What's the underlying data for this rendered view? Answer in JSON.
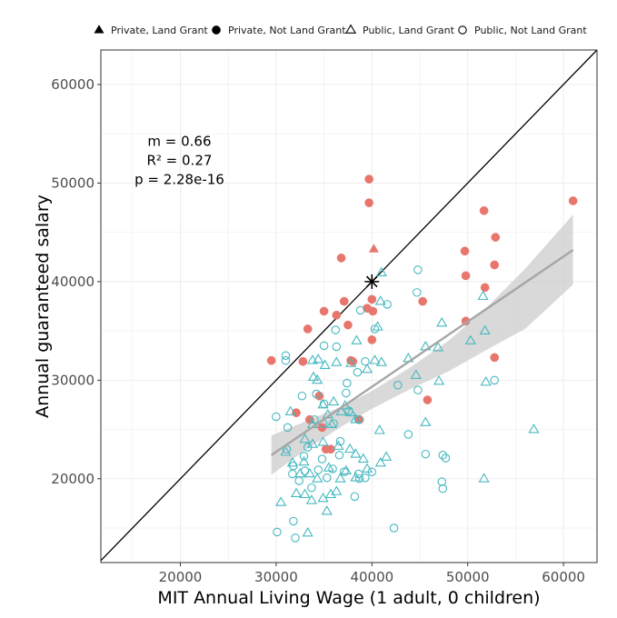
{
  "chart_data": {
    "type": "scatter",
    "xlabel": "MIT Annual Living Wage (1 adult, 0 children)",
    "ylabel": "Annual guaranteed salary",
    "xlim": [
      11700,
      63500
    ],
    "ylim": [
      11500,
      63500
    ],
    "x_ticks": [
      20000,
      30000,
      40000,
      50000,
      60000
    ],
    "y_ticks": [
      20000,
      30000,
      40000,
      50000,
      60000
    ],
    "x_tick_labels": [
      "20000",
      "30000",
      "40000",
      "50000",
      "60000"
    ],
    "y_tick_labels": [
      "20000",
      "30000",
      "40000",
      "50000",
      "60000"
    ],
    "grid": true,
    "legend_position": "top",
    "colors": {
      "private": "#e8766d",
      "public": "#45b8c0",
      "fit_line": "#a6a6a6",
      "ci_band": "#cccccc",
      "identity_line": "#000000"
    },
    "annotation": [
      "m = 0.66",
      "R² = 0.27",
      "p = 2.28e-16"
    ],
    "identity_line": {
      "x": [
        11700,
        63500
      ],
      "y": [
        11700,
        63500
      ]
    },
    "fit_line": {
      "x": [
        29500,
        61000
      ],
      "y": [
        22400,
        43200
      ]
    },
    "confidence_band": {
      "x": [
        29500,
        33000,
        37000,
        40000,
        44000,
        48000,
        52000,
        56000,
        61000
      ],
      "upper": [
        24400,
        25800,
        27400,
        28900,
        31300,
        34000,
        37400,
        41300,
        46800
      ],
      "lower": [
        20400,
        22900,
        25400,
        27100,
        29100,
        30900,
        33100,
        35200,
        39700
      ]
    },
    "highlight_point": {
      "x": 40000,
      "y": 40000,
      "marker": "asterisk"
    },
    "series": [
      {
        "name": "Private, Land Grant",
        "marker": "triangle-filled",
        "points": [
          [
            40200,
            43300
          ]
        ]
      },
      {
        "name": "Private, Not Land Grant",
        "marker": "circle-filled",
        "points": [
          [
            39700,
            50400
          ],
          [
            39700,
            48000
          ],
          [
            61000,
            48200
          ],
          [
            51700,
            47200
          ],
          [
            52900,
            44500
          ],
          [
            49700,
            43100
          ],
          [
            52800,
            41700
          ],
          [
            49800,
            40600
          ],
          [
            51800,
            39400
          ],
          [
            36800,
            42400
          ],
          [
            35000,
            37000
          ],
          [
            37100,
            38000
          ],
          [
            40000,
            38200
          ],
          [
            39500,
            37300
          ],
          [
            40100,
            37000
          ],
          [
            36300,
            36600
          ],
          [
            37500,
            35600
          ],
          [
            33300,
            35200
          ],
          [
            49800,
            36000
          ],
          [
            45300,
            38000
          ],
          [
            40000,
            34100
          ],
          [
            29500,
            32000
          ],
          [
            32800,
            31900
          ],
          [
            37800,
            32000
          ],
          [
            38000,
            31900
          ],
          [
            52800,
            32300
          ],
          [
            34500,
            28400
          ],
          [
            32100,
            26700
          ],
          [
            45800,
            28000
          ],
          [
            33500,
            26000
          ],
          [
            34800,
            25200
          ],
          [
            38700,
            26000
          ],
          [
            35200,
            23000
          ],
          [
            35700,
            23000
          ]
        ]
      },
      {
        "name": "Public, Land Grant",
        "marker": "triangle-open",
        "points": [
          [
            41000,
            40900
          ],
          [
            40900,
            38000
          ],
          [
            51600,
            38500
          ],
          [
            47300,
            35800
          ],
          [
            50300,
            34000
          ],
          [
            51800,
            35000
          ],
          [
            40600,
            35400
          ],
          [
            38400,
            34000
          ],
          [
            33800,
            32000
          ],
          [
            34400,
            32100
          ],
          [
            35100,
            31500
          ],
          [
            36300,
            31800
          ],
          [
            37800,
            31700
          ],
          [
            39500,
            31100
          ],
          [
            40300,
            32000
          ],
          [
            41000,
            31800
          ],
          [
            43800,
            32200
          ],
          [
            45600,
            33400
          ],
          [
            46900,
            33300
          ],
          [
            44600,
            30500
          ],
          [
            47000,
            29900
          ],
          [
            51900,
            29800
          ],
          [
            56900,
            25000
          ],
          [
            40800,
            24900
          ],
          [
            45600,
            25700
          ],
          [
            41500,
            22200
          ],
          [
            40900,
            21600
          ],
          [
            31500,
            26800
          ],
          [
            33800,
            25500
          ],
          [
            33900,
            30300
          ],
          [
            34300,
            30000
          ],
          [
            34900,
            27500
          ],
          [
            35400,
            26500
          ],
          [
            36000,
            27800
          ],
          [
            36800,
            26800
          ],
          [
            37200,
            27400
          ],
          [
            37800,
            26700
          ],
          [
            38300,
            26000
          ],
          [
            33000,
            24000
          ],
          [
            33800,
            23500
          ],
          [
            34900,
            23700
          ],
          [
            35800,
            25500
          ],
          [
            36500,
            23300
          ],
          [
            37700,
            23000
          ],
          [
            38300,
            22500
          ],
          [
            39100,
            22000
          ],
          [
            39500,
            21000
          ],
          [
            32900,
            21700
          ],
          [
            33500,
            20500
          ],
          [
            34300,
            20000
          ],
          [
            35500,
            21100
          ],
          [
            36700,
            20000
          ],
          [
            37300,
            20800
          ],
          [
            38300,
            20100
          ],
          [
            31000,
            22700
          ],
          [
            31700,
            21600
          ],
          [
            32500,
            20500
          ],
          [
            32100,
            18500
          ],
          [
            33000,
            18400
          ],
          [
            33700,
            17800
          ],
          [
            34900,
            18000
          ],
          [
            35700,
            18400
          ],
          [
            36300,
            18700
          ],
          [
            30500,
            17600
          ],
          [
            35300,
            16700
          ],
          [
            33300,
            14500
          ],
          [
            51700,
            20000
          ]
        ]
      },
      {
        "name": "Public, Not Land Grant",
        "marker": "circle-open",
        "points": [
          [
            41600,
            37700
          ],
          [
            44800,
            41200
          ],
          [
            44700,
            38900
          ],
          [
            38800,
            37100
          ],
          [
            40300,
            35200
          ],
          [
            36200,
            35100
          ],
          [
            35000,
            33500
          ],
          [
            31000,
            32500
          ],
          [
            31000,
            32000
          ],
          [
            36300,
            33400
          ],
          [
            39300,
            31900
          ],
          [
            38500,
            30800
          ],
          [
            37400,
            29700
          ],
          [
            42700,
            29500
          ],
          [
            44800,
            29000
          ],
          [
            52800,
            30000
          ],
          [
            34200,
            28600
          ],
          [
            32700,
            28400
          ],
          [
            35000,
            27600
          ],
          [
            37300,
            28700
          ],
          [
            34000,
            26000
          ],
          [
            34900,
            25600
          ],
          [
            36000,
            25600
          ],
          [
            37600,
            26900
          ],
          [
            38600,
            26000
          ],
          [
            36700,
            23800
          ],
          [
            33300,
            23200
          ],
          [
            32900,
            22300
          ],
          [
            34800,
            22000
          ],
          [
            36600,
            22400
          ],
          [
            31800,
            21300
          ],
          [
            31100,
            23000
          ],
          [
            33000,
            20800
          ],
          [
            34400,
            20900
          ],
          [
            35900,
            21000
          ],
          [
            37100,
            20700
          ],
          [
            38600,
            20500
          ],
          [
            39300,
            20100
          ],
          [
            40000,
            20700
          ],
          [
            47400,
            22400
          ],
          [
            47700,
            22100
          ],
          [
            43800,
            24500
          ],
          [
            45600,
            22500
          ],
          [
            31700,
            20500
          ],
          [
            32400,
            19800
          ],
          [
            33700,
            19100
          ],
          [
            38200,
            18200
          ],
          [
            38700,
            20000
          ],
          [
            30000,
            26300
          ],
          [
            31200,
            25200
          ],
          [
            30100,
            14600
          ],
          [
            31800,
            15700
          ],
          [
            32000,
            14000
          ],
          [
            42300,
            15000
          ],
          [
            47300,
            19700
          ],
          [
            47400,
            19000
          ],
          [
            35300,
            20100
          ]
        ]
      }
    ]
  }
}
